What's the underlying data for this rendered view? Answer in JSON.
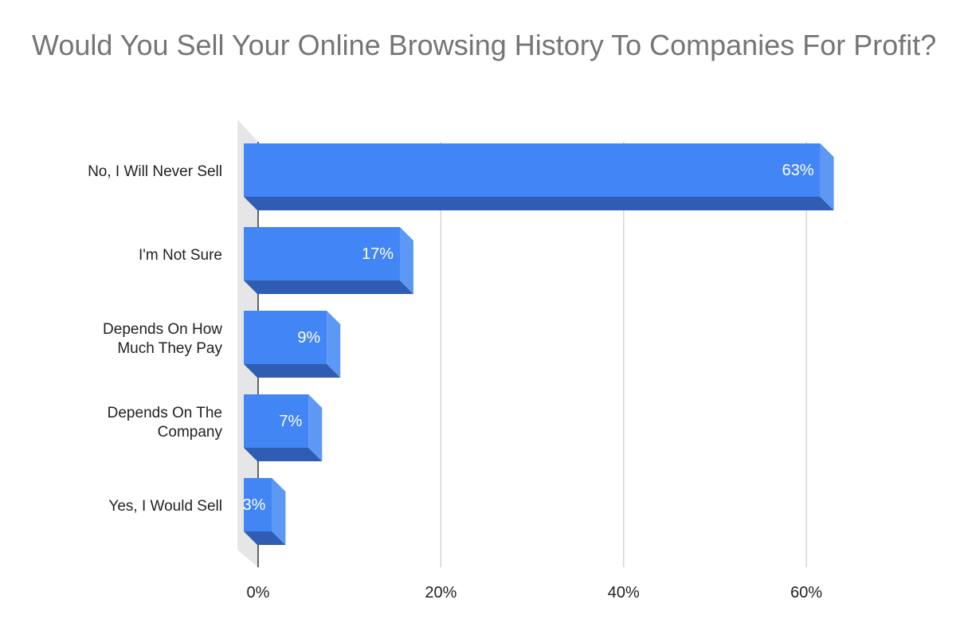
{
  "chart_data": {
    "type": "bar",
    "orientation": "horizontal",
    "style": "3d",
    "title": "Would You Sell Your Online Browsing History To Companies For Profit?",
    "categories": [
      "No, I Will Never Sell",
      "I'm Not Sure",
      "Depends On How Much They Pay",
      "Depends On The Company",
      "Yes, I Would Sell"
    ],
    "category_lines": [
      [
        "No, I Will Never Sell"
      ],
      [
        "I'm Not Sure"
      ],
      [
        "Depends On How",
        "Much They Pay"
      ],
      [
        "Depends On The",
        "Company"
      ],
      [
        "Yes, I Would Sell"
      ]
    ],
    "values": [
      63,
      17,
      9,
      7,
      3
    ],
    "data_labels": [
      "63%",
      "17%",
      "9%",
      "7%",
      "3%"
    ],
    "xlim": [
      0,
      60
    ],
    "x_ticks": [
      0,
      20,
      40,
      60
    ],
    "x_tick_labels": [
      "0%",
      "20%",
      "40%",
      "60%"
    ],
    "grid": true,
    "legend": "none",
    "colors": {
      "bar_front": "#4285f4",
      "bar_side": "#5e98f5",
      "bar_bottom": "#2f5db3",
      "gridline": "#cccccc",
      "wall": "#e6e6e6"
    }
  }
}
